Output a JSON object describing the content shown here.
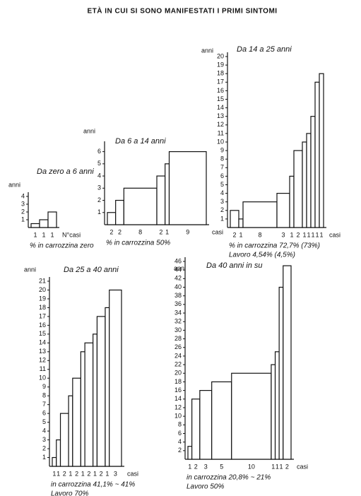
{
  "title": "ETÀ IN CUI SI SONO MANIFESTATI I PRIMI SINTOMI",
  "chart_data": [
    {
      "type": "bar",
      "title": "Da zero a 6 anni",
      "ylabel": "anni",
      "xlabel": "N°casi",
      "widths": [
        1,
        1,
        1
      ],
      "values": [
        0.5,
        1,
        2
      ],
      "ylim": [
        0,
        4
      ],
      "yticks": [
        1,
        2,
        3,
        4
      ],
      "notes": [
        "% in carrozzina zero"
      ]
    },
    {
      "type": "bar",
      "title": "Da 6 a 14 anni",
      "ylabel": "anni",
      "xlabel": "casi",
      "widths": [
        2,
        2,
        8,
        2,
        1,
        9
      ],
      "values": [
        1,
        2,
        3,
        4,
        5,
        6
      ],
      "ylim": [
        0,
        6.5
      ],
      "yticks": [
        1,
        2,
        3,
        4,
        5,
        6
      ],
      "notes": [
        "% in carrozzina 50%"
      ]
    },
    {
      "type": "bar",
      "title": "Da 14 a 25 anni",
      "ylabel": "anni",
      "xlabel": "casi",
      "widths": [
        2,
        1,
        8,
        3,
        1,
        2,
        1,
        1,
        1,
        1,
        1
      ],
      "values": [
        2,
        1,
        3,
        4,
        6,
        9,
        10,
        11,
        13,
        17,
        18
      ],
      "ylim": [
        0,
        20
      ],
      "yticks": [
        1,
        2,
        3,
        4,
        5,
        6,
        7,
        8,
        9,
        10,
        11,
        12,
        13,
        14,
        15,
        16,
        17,
        18,
        19,
        20
      ],
      "notes": [
        "% in carrozzina 72,7% (73%)",
        "Lavoro 4,54% (4,5%)"
      ]
    },
    {
      "type": "bar",
      "title": "Da 25 a 40 anni",
      "ylabel": "anni",
      "xlabel": "casi",
      "widths": [
        1,
        1,
        2,
        1,
        2,
        1,
        2,
        1,
        2,
        1,
        3
      ],
      "values": [
        1,
        3,
        6,
        8,
        10,
        13,
        14,
        15,
        17,
        18,
        20
      ],
      "ylim": [
        0,
        21
      ],
      "yticks": [
        1,
        2,
        3,
        4,
        5,
        6,
        7,
        8,
        9,
        10,
        11,
        12,
        13,
        14,
        15,
        16,
        17,
        18,
        19,
        20,
        21
      ],
      "notes": [
        "in carrozzina 41,1% ~ 41%",
        "Lavoro 70%"
      ]
    },
    {
      "type": "bar",
      "title": "Da 40 anni in su",
      "ylabel": "anni",
      "xlabel": "casi",
      "widths": [
        1,
        2,
        3,
        5,
        10,
        1,
        1,
        1,
        2
      ],
      "values": [
        3,
        14,
        16,
        18,
        20,
        22,
        25,
        40,
        45
      ],
      "ylim": [
        0,
        46
      ],
      "yticks": [
        2,
        4,
        6,
        8,
        10,
        12,
        14,
        16,
        18,
        20,
        22,
        24,
        26,
        28,
        30,
        32,
        34,
        36,
        38,
        40,
        42,
        44,
        46
      ],
      "notes": [
        "in carrozzina 20,8% ~ 21%",
        "Lavoro 50%"
      ]
    }
  ]
}
